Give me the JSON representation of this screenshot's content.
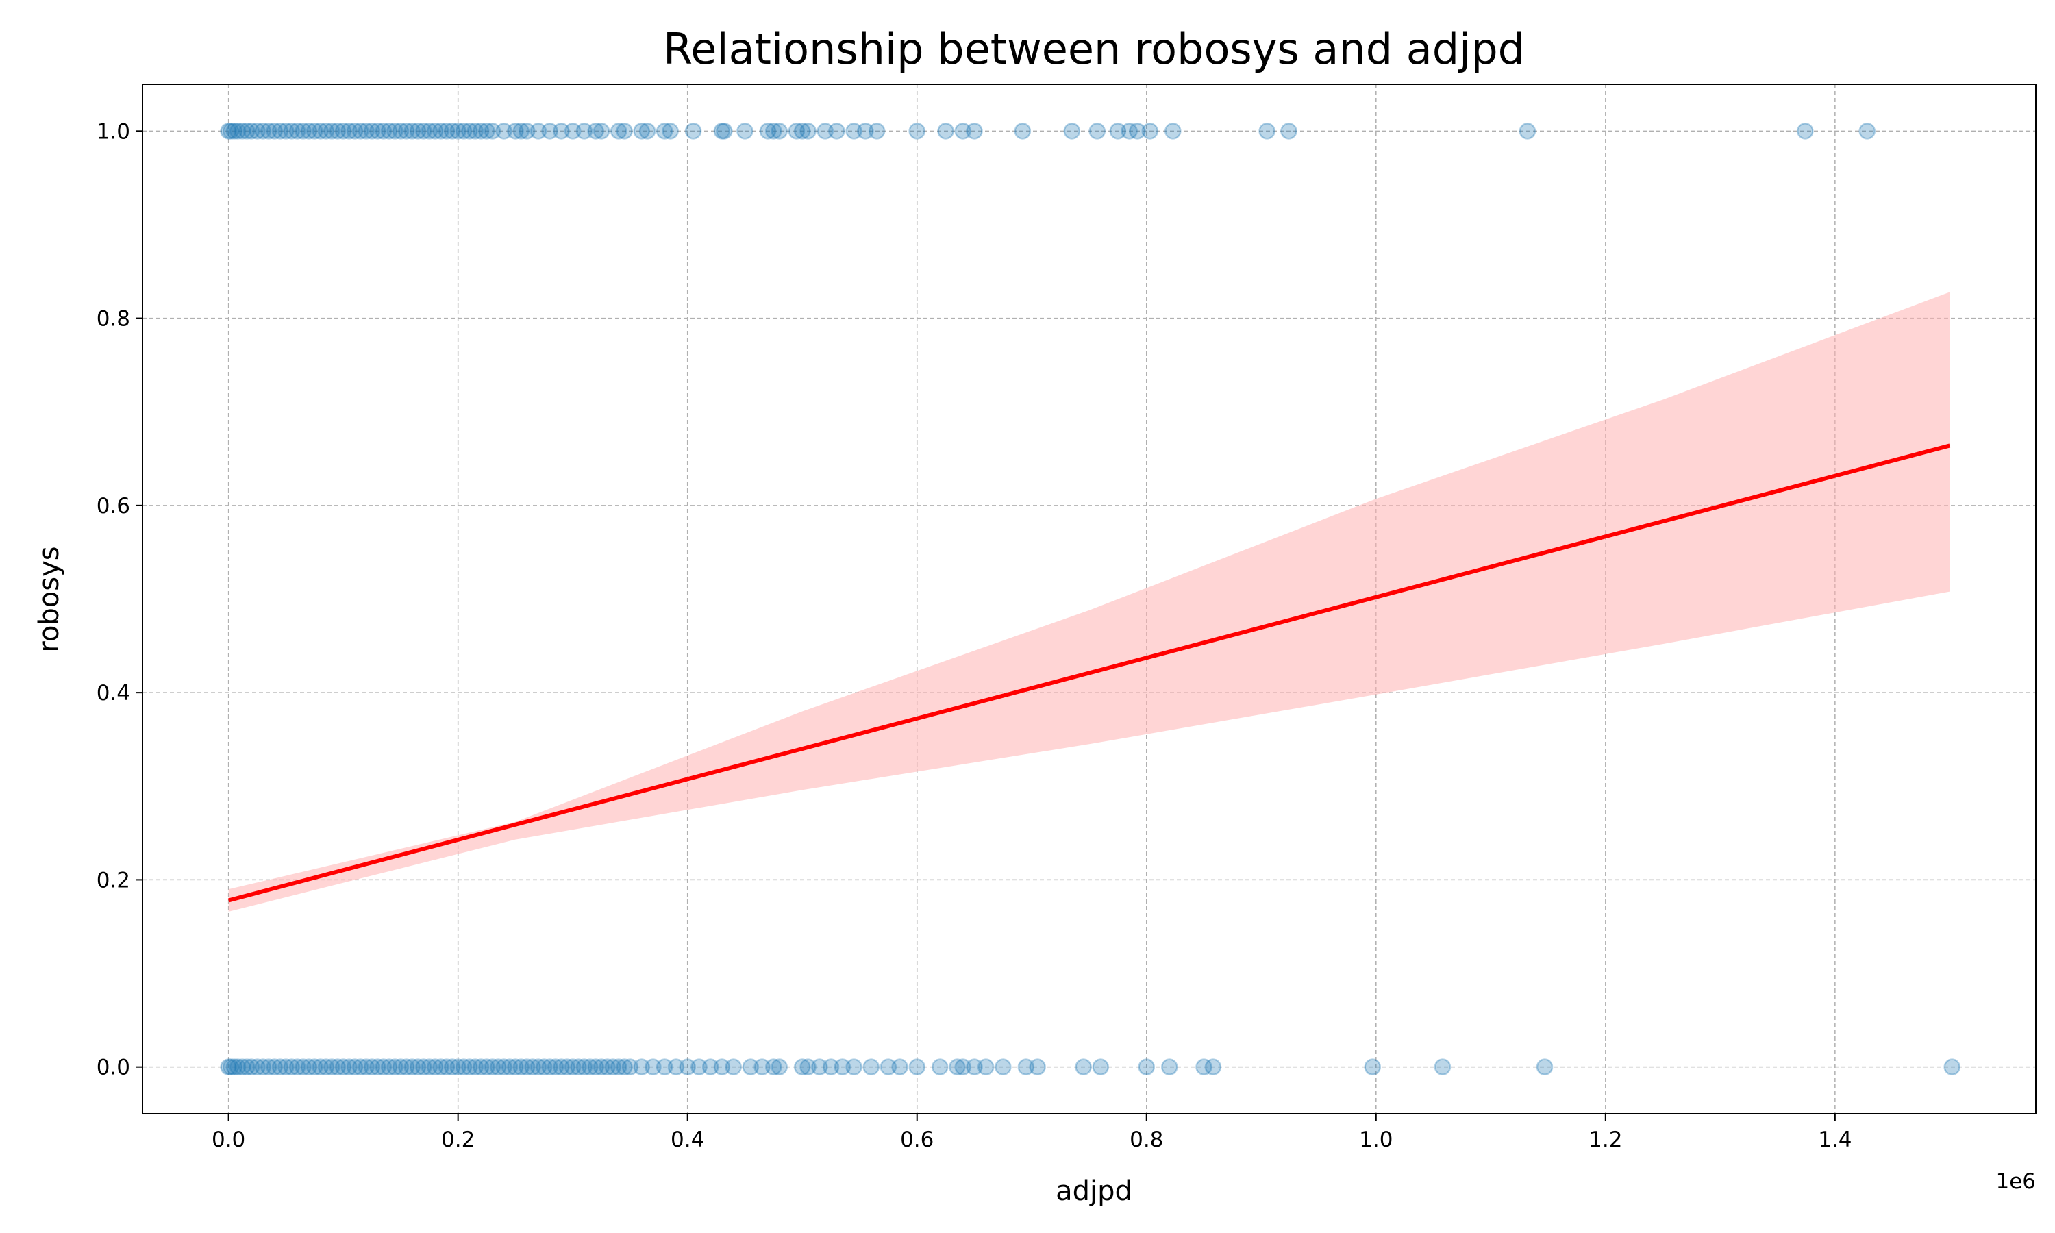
{
  "chart_data": {
    "type": "scatter",
    "title": "Relationship between robosys and adjpd",
    "xlabel": "adjpd",
    "ylabel": "robosys",
    "x_offset_label": "1e6",
    "xlim": [
      -75000,
      1575000
    ],
    "ylim": [
      -0.05,
      1.05
    ],
    "x_ticks": [
      0,
      200000,
      400000,
      600000,
      800000,
      1000000,
      1200000,
      1400000
    ],
    "x_tick_labels": [
      "0.0",
      "0.2",
      "0.4",
      "0.6",
      "0.8",
      "1.0",
      "1.2",
      "1.4"
    ],
    "y_ticks": [
      0.0,
      0.2,
      0.4,
      0.6,
      0.8,
      1.0
    ],
    "y_tick_labels": [
      "0.0",
      "0.2",
      "0.4",
      "0.6",
      "0.8",
      "1.0"
    ],
    "grid": true,
    "colors": {
      "points": "#1f77b4",
      "fit_line": "#ff0000",
      "confidence_band": "#ffb3b3"
    },
    "series": [
      {
        "kind": "points",
        "y": 1,
        "x": [
          0,
          2000,
          5000,
          8000,
          12000,
          16000,
          20000,
          25000,
          30000,
          35000,
          40000,
          45000,
          50000,
          55000,
          60000,
          65000,
          70000,
          75000,
          80000,
          85000,
          90000,
          95000,
          100000,
          105000,
          110000,
          115000,
          120000,
          125000,
          130000,
          135000,
          140000,
          145000,
          150000,
          155000,
          160000,
          165000,
          170000,
          175000,
          180000,
          185000,
          190000,
          195000,
          200000,
          205000,
          210000,
          215000,
          220000,
          225000,
          230000,
          240000,
          250000,
          255000,
          260000,
          270000,
          280000,
          290000,
          300000,
          310000,
          320000,
          325000,
          340000,
          345000,
          360000,
          365000,
          380000,
          385000,
          405000,
          430000,
          432000,
          450000,
          470000,
          475000,
          480000,
          495000,
          500000,
          505000,
          520000,
          530000,
          545000,
          555000,
          565000,
          600000,
          625000,
          640000,
          650000,
          692000,
          735000,
          757000,
          775000,
          785000,
          792000,
          803000,
          823000,
          905000,
          924000,
          1132000,
          1374000,
          1428000
        ]
      },
      {
        "kind": "points",
        "y": 0,
        "x": [
          0,
          2000,
          5000,
          8000,
          12000,
          16000,
          20000,
          25000,
          30000,
          35000,
          40000,
          45000,
          50000,
          55000,
          60000,
          65000,
          70000,
          75000,
          80000,
          85000,
          90000,
          95000,
          100000,
          105000,
          110000,
          115000,
          120000,
          125000,
          130000,
          135000,
          140000,
          145000,
          150000,
          155000,
          160000,
          165000,
          170000,
          175000,
          180000,
          185000,
          190000,
          195000,
          200000,
          205000,
          210000,
          215000,
          220000,
          225000,
          230000,
          235000,
          240000,
          245000,
          250000,
          255000,
          260000,
          265000,
          270000,
          275000,
          280000,
          285000,
          290000,
          295000,
          300000,
          305000,
          310000,
          315000,
          320000,
          325000,
          330000,
          335000,
          340000,
          345000,
          350000,
          360000,
          370000,
          380000,
          390000,
          400000,
          410000,
          420000,
          430000,
          440000,
          455000,
          465000,
          475000,
          480000,
          500000,
          505000,
          515000,
          525000,
          535000,
          545000,
          560000,
          575000,
          585000,
          600000,
          620000,
          635000,
          640000,
          650000,
          660000,
          675000,
          695000,
          705000,
          745000,
          760000,
          800000,
          820000,
          850000,
          858000,
          997000,
          1058000,
          1147000,
          1502000
        ]
      },
      {
        "kind": "regression",
        "name": "fit",
        "x": [
          0,
          1500000
        ],
        "y": [
          0.178,
          0.664
        ]
      },
      {
        "kind": "confidence_band",
        "x": [
          0,
          250000,
          500000,
          750000,
          1000000,
          1250000,
          1500000
        ],
        "lower": [
          0.166,
          0.243,
          0.296,
          0.345,
          0.398,
          0.452,
          0.508
        ],
        "upper": [
          0.19,
          0.262,
          0.38,
          0.488,
          0.607,
          0.713,
          0.828
        ]
      }
    ]
  }
}
